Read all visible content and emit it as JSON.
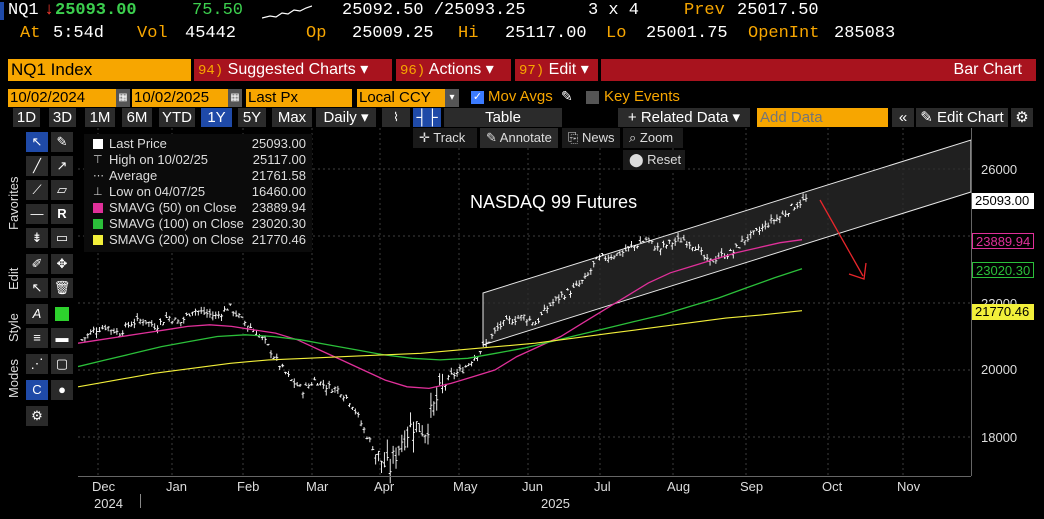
{
  "quote": {
    "ticker": "NQ1",
    "arrow": "↓",
    "last": "25093.00",
    "change": "75.50",
    "bid_ask": "25092.50 /25093.25",
    "size": "3 x 4",
    "prev_label": "Prev",
    "prev": "25017.50",
    "at_label": "At",
    "at": "5:54d",
    "vol_label": "Vol",
    "vol": "45442",
    "op_label": "Op",
    "op": "25009.25",
    "hi_label": "Hi",
    "hi": "25117.00",
    "lo_label": "Lo",
    "lo": "25001.75",
    "oi_label": "OpenInt",
    "oi": "285083"
  },
  "command_bar": {
    "security": "NQ1 Index",
    "menu1_num": "94)",
    "menu1": "Suggested Charts ▾",
    "menu2_num": "96)",
    "menu2": "Actions ▾",
    "menu3_num": "97)",
    "menu3": "Edit ▾",
    "title": "Bar Chart"
  },
  "controls": {
    "start_date": "10/02/2024",
    "dash": "-",
    "end_date": "10/02/2025",
    "field": "Last Px",
    "currency": "Local CCY",
    "mov_avgs": "Mov Avgs",
    "key_events": "Key Events"
  },
  "tabs": {
    "ranges": [
      "1D",
      "3D",
      "1M",
      "6M",
      "YTD",
      "1Y",
      "5Y",
      "Max"
    ],
    "active": "1Y",
    "period": "Daily ▾",
    "table": "Table",
    "related": "+ Related Data ▾",
    "add_data_placeholder": "Add Data",
    "edit_chart": "Edit Chart"
  },
  "side_tabs": [
    "Favorites",
    "Edit",
    "Style",
    "Modes"
  ],
  "chart_buttons": {
    "track": "Track",
    "annotate": "Annotate",
    "news": "News",
    "zoom": "Zoom",
    "reset": "Reset"
  },
  "legend": [
    {
      "label": "Last Price",
      "value": "25093.00",
      "color": "#ffffff"
    },
    {
      "label": "High on 10/02/25",
      "value": "25117.00",
      "color": ""
    },
    {
      "label": "Average",
      "value": "21761.58",
      "color": ""
    },
    {
      "label": "Low on 04/07/25",
      "value": "16460.00",
      "color": ""
    },
    {
      "label": "SMAVG (50)  on Close",
      "value": "23889.94",
      "color": "#e0309a"
    },
    {
      "label": "SMAVG (100)  on Close",
      "value": "23020.30",
      "color": "#2bbf3a"
    },
    {
      "label": "SMAVG (200)  on Close",
      "value": "21770.46",
      "color": "#f2ef3a"
    }
  ],
  "annotation_text": "NASDAQ 99 Futures",
  "colors": {
    "accent_orange": "#f7a600",
    "command_red": "#a8131e",
    "sma50": "#e0309a",
    "sma100": "#2bbf3a",
    "sma200": "#f2ef3a",
    "down_arrow": "#e8262b"
  },
  "chart_data": {
    "type": "bar",
    "title": "NASDAQ 99 Futures",
    "x_ticks": [
      "Dec",
      "Jan",
      "Feb",
      "Mar",
      "Apr",
      "May",
      "Jun",
      "Jul",
      "Aug",
      "Sep",
      "Oct",
      "Nov"
    ],
    "x_year_labels": [
      "2024",
      "2025"
    ],
    "y_ticks": [
      "26000",
      "22000",
      "20000",
      "18000"
    ],
    "ylim": [
      17000,
      27000
    ],
    "last_value_labels": [
      "25093.00",
      "23889.94",
      "23020.30",
      "21770.46"
    ],
    "series": [
      {
        "name": "Last Price",
        "values": [
          20900,
          21200,
          21300,
          21100,
          21400,
          21500,
          21300,
          21600,
          21400,
          21800,
          21700,
          21600,
          21900,
          21500,
          21200,
          20800,
          20200,
          19700,
          19400,
          19700,
          19500,
          19400,
          19000,
          18200,
          17500,
          17000,
          17900,
          18400,
          18200,
          19200,
          19800,
          20000,
          20400,
          20800,
          21300,
          21500,
          21600,
          21400,
          21900,
          22200,
          22400,
          22700,
          23300,
          23400,
          23500,
          23700,
          23900,
          23600,
          23800,
          23900,
          23700,
          23200,
          23400,
          23500,
          23900,
          24100,
          24400,
          24600,
          24900,
          25093
        ]
      },
      {
        "name": "SMAVG (50)",
        "values": [
          20800,
          20900,
          21000,
          21100,
          21200,
          21300,
          21350,
          21300,
          21200,
          21100,
          20900,
          20600,
          20300,
          20000,
          19700,
          19500,
          19450,
          19600,
          19800,
          20000,
          20400,
          20700,
          21000,
          21400,
          21800,
          22200,
          22600,
          22900,
          23100,
          23300,
          23500,
          23650,
          23800,
          23889.94
        ]
      },
      {
        "name": "SMAVG (100)",
        "values": [
          20100,
          20300,
          20500,
          20700,
          20850,
          21000,
          21050,
          21000,
          20900,
          20750,
          20600,
          20450,
          20350,
          20300,
          20350,
          20500,
          20650,
          20850,
          21050,
          21250,
          21450,
          21650,
          21900,
          22150,
          22450,
          22750,
          23020.3
        ]
      },
      {
        "name": "SMAVG (200)",
        "values": [
          19500,
          19700,
          19900,
          20050,
          20200,
          20300,
          20350,
          20400,
          20450,
          20500,
          20600,
          20700,
          20800,
          20950,
          21100,
          21250,
          21400,
          21550,
          21650,
          21770.46
        ]
      }
    ]
  }
}
